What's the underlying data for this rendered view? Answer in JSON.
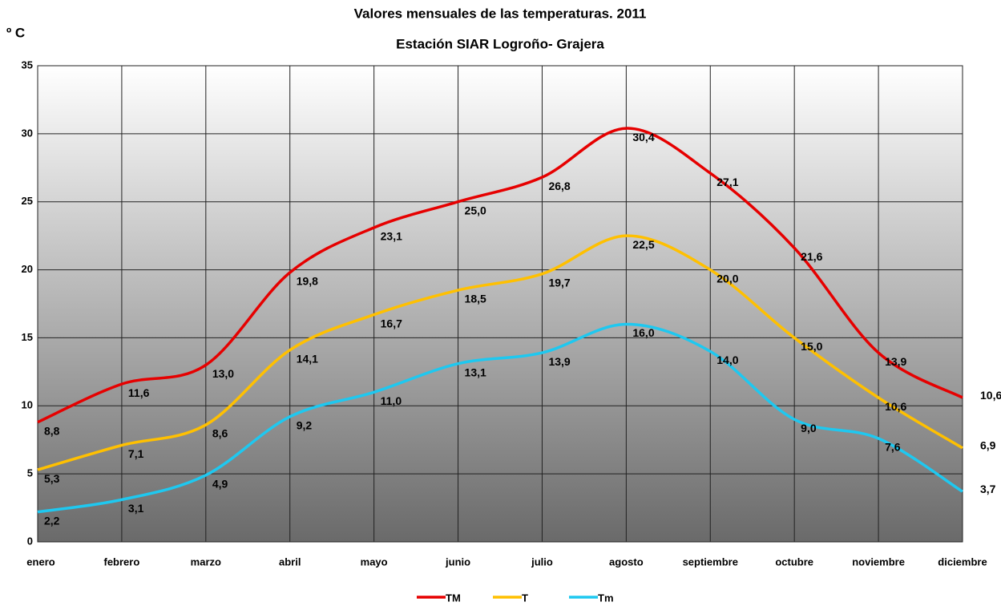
{
  "chart_data": {
    "type": "line",
    "title": "Valores mensuales de las temperaturas. 2011",
    "subtitle": "Estación SIAR Logroño- Grajera",
    "y_label": "º C",
    "categories": [
      "enero",
      "febrero",
      "marzo",
      "abril",
      "mayo",
      "junio",
      "julio",
      "agosto",
      "septiembre",
      "octubre",
      "noviembre",
      "diciembre"
    ],
    "series": [
      {
        "name": "TM",
        "color": "#e60000",
        "values": [
          8.8,
          11.6,
          13.0,
          19.8,
          23.1,
          25.0,
          26.8,
          30.4,
          27.1,
          21.6,
          13.9,
          10.6
        ],
        "value_labels": [
          "8,8",
          "11,6",
          "13,0",
          "19,8",
          "23,1",
          "25,0",
          "26,8",
          "30,4",
          "27,1",
          "21,6",
          "13,9",
          "10,6"
        ]
      },
      {
        "name": "T",
        "color": "#ffc000",
        "values": [
          5.3,
          7.1,
          8.6,
          14.1,
          16.7,
          18.5,
          19.7,
          22.5,
          20.0,
          15.0,
          10.6,
          6.9
        ],
        "value_labels": [
          "5,3",
          "7,1",
          "8,6",
          "14,1",
          "16,7",
          "18,5",
          "19,7",
          "22,5",
          "20,0",
          "15,0",
          "10,6",
          "6,9"
        ]
      },
      {
        "name": "Tm",
        "color": "#1ec8f0",
        "values": [
          2.2,
          3.1,
          4.9,
          9.2,
          11.0,
          13.1,
          13.9,
          16.0,
          14.0,
          9.0,
          7.6,
          3.7
        ],
        "value_labels": [
          "2,2",
          "3,1",
          "4,9",
          "9,2",
          "11,0",
          "13,1",
          "13,9",
          "16,0",
          "14,0",
          "9,0",
          "7,6",
          "3,7"
        ]
      }
    ],
    "ylim": [
      0,
      35
    ],
    "yticks": [
      0,
      5,
      10,
      15,
      20,
      25,
      30,
      35
    ],
    "grid": true,
    "legend": "bottom"
  }
}
